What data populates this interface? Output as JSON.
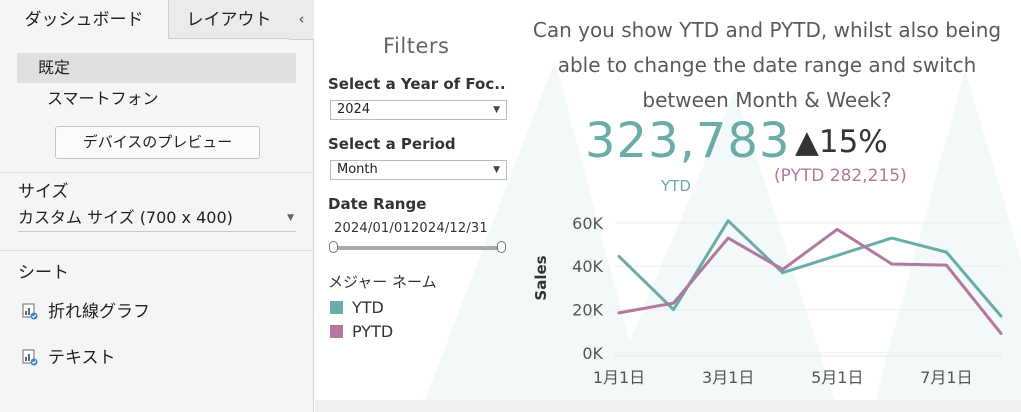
{
  "left_pane": {
    "tabs": [
      "ダッシュボード",
      "レイアウト"
    ],
    "collapse_icon": "chevron-left-icon",
    "devices": [
      "既定",
      "スマートフォン"
    ],
    "preview_button": "デバイスのプレビュー",
    "size_heading": "サイズ",
    "size_value": "カスタム サイズ (700 x 400)",
    "sheet_heading": "シート",
    "sheets": [
      "折れ線グラフ",
      "テキスト"
    ]
  },
  "filters": {
    "title": "Filters",
    "year_label": "Select a Year of Foc..",
    "year_value": "2024",
    "period_label": "Select a Period",
    "period_value": "Month",
    "range_label": "Date Range",
    "range_start": "2024/01/01",
    "range_end": "2024/12/31",
    "legend_title": "メジャー ネーム",
    "legend": [
      "YTD",
      "PYTD"
    ]
  },
  "kpi": {
    "question": "Can you show YTD and PYTD, whilst also being able to change the date range and switch between Month & Week?",
    "value": "323,783",
    "change": "▲15%",
    "ytd_label": "YTD",
    "pytd_label": "(PYTD 282,215)"
  },
  "colors": {
    "ytd": "#6aaca8",
    "pytd": "#b3789e"
  },
  "chart_data": {
    "type": "line",
    "x": [
      "2024-01",
      "2024-02",
      "2024-03",
      "2024-04",
      "2024-05",
      "2024-06",
      "2024-07",
      "2024-08"
    ],
    "xticks": [
      "1月1日",
      "3月1日",
      "5月1日",
      "7月1日"
    ],
    "ylabel": "Sales",
    "yticks": [
      "0K",
      "20K",
      "40K",
      "60K"
    ],
    "ylim": [
      0,
      65000
    ],
    "series": [
      {
        "name": "YTD",
        "values": [
          44500,
          20000,
          61000,
          37000,
          45000,
          53000,
          46500,
          17000
        ]
      },
      {
        "name": "PYTD",
        "values": [
          18500,
          23000,
          53000,
          38500,
          57000,
          41000,
          40500,
          9000
        ]
      }
    ]
  }
}
